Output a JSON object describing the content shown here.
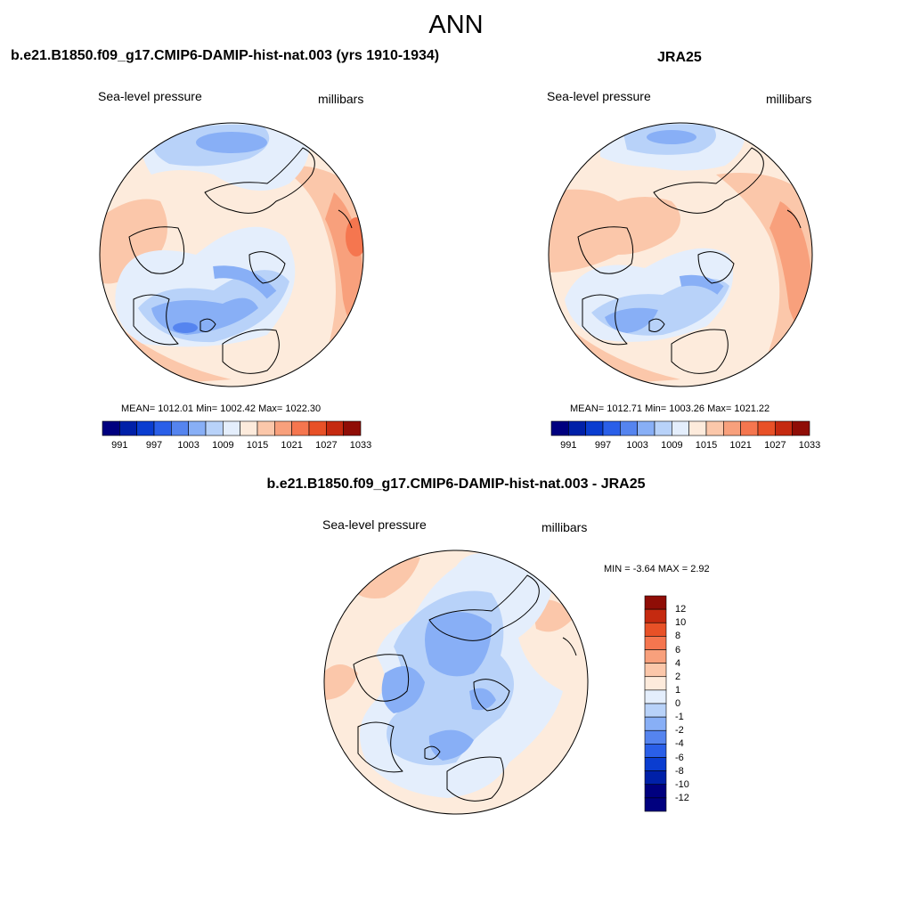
{
  "figure": {
    "title": "ANN"
  },
  "palette": [
    "#00007f",
    "#0020a8",
    "#0a3dd0",
    "#2a5fe8",
    "#5584ef",
    "#88aff6",
    "#b8d2f9",
    "#e4eefc",
    "#fdebdc",
    "#fbc7aa",
    "#f8a07c",
    "#f5764f",
    "#e85127",
    "#c52a10",
    "#8f0d06"
  ],
  "diff_palette": [
    "#00007f",
    "#0020a8",
    "#0a3dd0",
    "#2a5fe8",
    "#5584ef",
    "#88aff6",
    "#b8d2f9",
    "#e4eefc",
    "#fdebdc",
    "#fbc7aa",
    "#f8a07c",
    "#f5764f",
    "#e85127",
    "#c52a10",
    "#8f0d06"
  ],
  "panels": [
    {
      "title": "b.e21.B1850.f09_g17.CMIP6-DAMIP-hist-nat.003 (yrs 1910-1934)",
      "variable": "Sea-level pressure",
      "units": "millibars",
      "stats": "MEAN= 1012.01  Min= 1002.42  Max= 1022.30",
      "colorbar_labels": [
        "991",
        "997",
        "1003",
        "1009",
        "1015",
        "1021",
        "1027",
        "1033"
      ]
    },
    {
      "title": "JRA25",
      "variable": "Sea-level pressure",
      "units": "millibars",
      "stats": "MEAN= 1012.71  Min= 1003.26  Max= 1021.22",
      "colorbar_labels": [
        "991",
        "997",
        "1003",
        "1009",
        "1015",
        "1021",
        "1027",
        "1033"
      ]
    },
    {
      "title": "b.e21.B1850.f09_g17.CMIP6-DAMIP-hist-nat.003 - JRA25",
      "variable": "Sea-level pressure",
      "units": "millibars",
      "stats": "MIN =  -3.64 MAX =   2.92",
      "colorbar_labels": [
        "12",
        "10",
        "8",
        "6",
        "4",
        "2",
        "1",
        "0",
        "-1",
        "-2",
        "-4",
        "-6",
        "-8",
        "-10",
        "-12"
      ]
    }
  ]
}
